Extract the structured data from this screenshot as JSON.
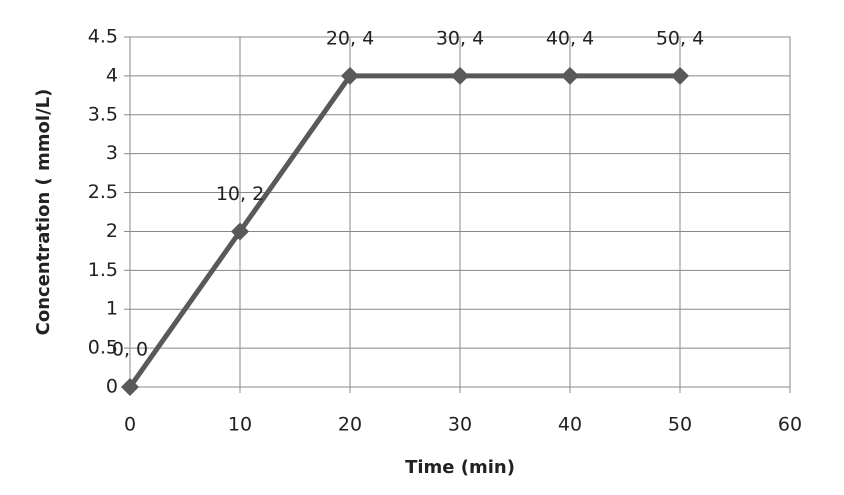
{
  "chart_data": {
    "type": "line",
    "x_label": "Time (min)",
    "y_label": "Concentration ( mmol/L)",
    "x": [
      0,
      10,
      20,
      30,
      40,
      50
    ],
    "series": [
      {
        "color": "#595959",
        "values": [
          0,
          2,
          4,
          4,
          4,
          4
        ],
        "value_labels": [
          "0, 0",
          "10, 2",
          "20, 4",
          "30, 4",
          "40, 4",
          "50, 4"
        ]
      }
    ],
    "xlim": [
      0,
      60
    ],
    "xticks": [
      0,
      10,
      20,
      30,
      40,
      50,
      60
    ],
    "ylim": [
      0,
      4.5
    ],
    "yticks": [
      0,
      0.5,
      1,
      1.5,
      2,
      2.5,
      3,
      3.5,
      4,
      4.5
    ],
    "grid": true
  }
}
